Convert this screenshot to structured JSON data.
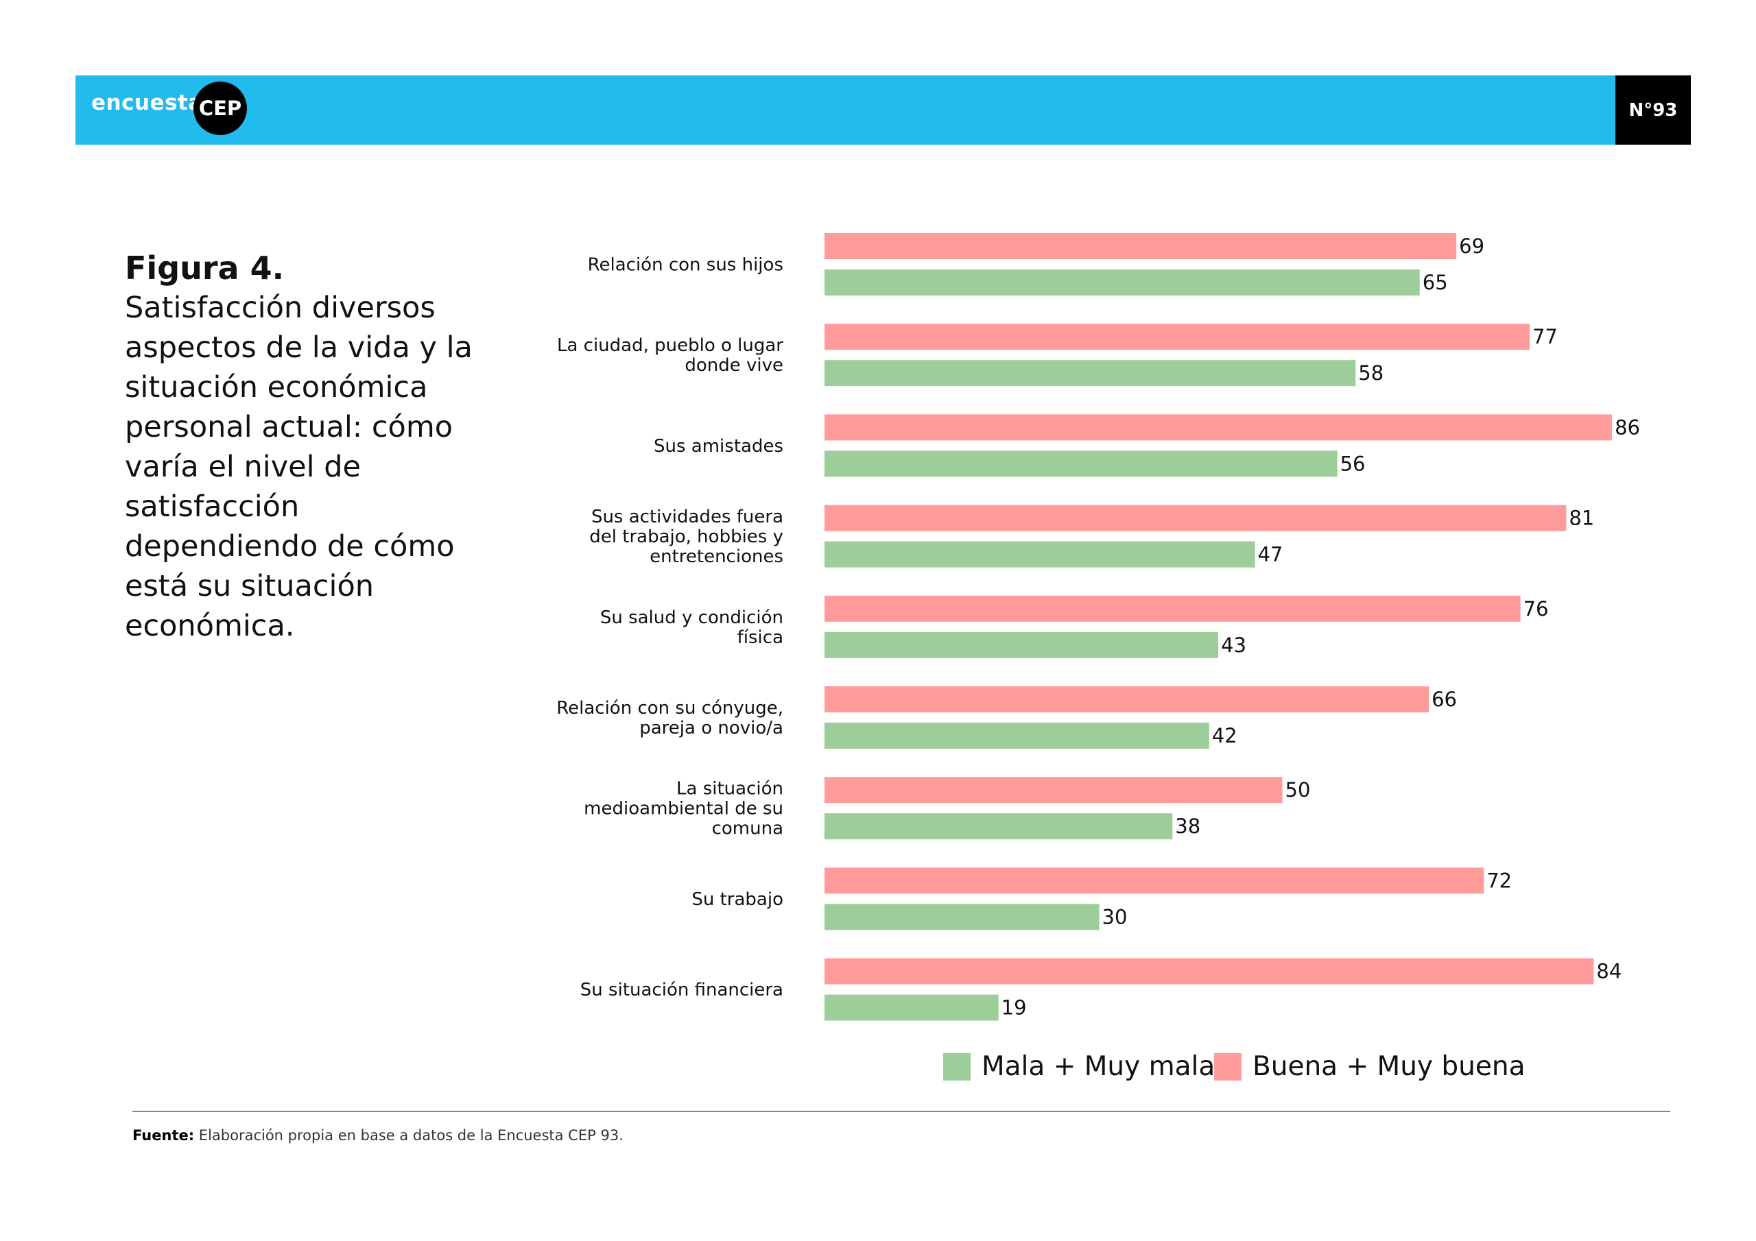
{
  "header": {
    "brand": "encuesta",
    "brand_badge": "CEP",
    "issue": "N°93",
    "bar_color": "#22bbee"
  },
  "figure": {
    "label": "Figura 4.",
    "description": "Satisfacción diversos aspectos de la vida y la situación económica personal actual: cómo varía el nivel de satisfacción dependiendo de cómo está su situación económica."
  },
  "chart_data": {
    "type": "bar",
    "orientation": "horizontal",
    "categories": [
      "Relación con sus hijos",
      "La ciudad, pueblo o lugar donde vive",
      "Sus amistades",
      "Sus actividades fuera del trabajo, hobbies y entretenciones",
      "Su salud y condición física",
      "Relación con su cónyuge, pareja o novio/a",
      "La situación medioambiental de su comuna",
      "Su trabajo",
      "Su situación financiera"
    ],
    "category_lines": [
      [
        "Relación con sus hijos"
      ],
      [
        "La ciudad, pueblo o lugar",
        "donde vive"
      ],
      [
        "Sus amistades"
      ],
      [
        "Sus actividades fuera",
        "del trabajo, hobbies y",
        "entretenciones"
      ],
      [
        "Su salud y condición",
        "física"
      ],
      [
        "Relación con su cónyuge,",
        "pareja o novio/a"
      ],
      [
        "La situación",
        "medioambiental de su",
        "comuna"
      ],
      [
        "Su trabajo"
      ],
      [
        "Su situación financiera"
      ]
    ],
    "series": [
      {
        "name": "Buena + Muy buena",
        "color": "#ff9b9b",
        "values": [
          69,
          77,
          86,
          81,
          76,
          66,
          50,
          72,
          84
        ]
      },
      {
        "name": "Mala + Muy mala",
        "color": "#9dcd98",
        "values": [
          65,
          58,
          56,
          47,
          43,
          42,
          38,
          30,
          19
        ]
      }
    ],
    "legend_order": [
      "Mala + Muy mala",
      "Buena + Muy buena"
    ],
    "legend_position": "bottom",
    "xlim": [
      0,
      100
    ],
    "grid": false,
    "data_labels": true
  },
  "footer": {
    "source_label": "Fuente:",
    "source_text": " Elaboración propia en base a datos de la Encuesta CEP 93."
  }
}
